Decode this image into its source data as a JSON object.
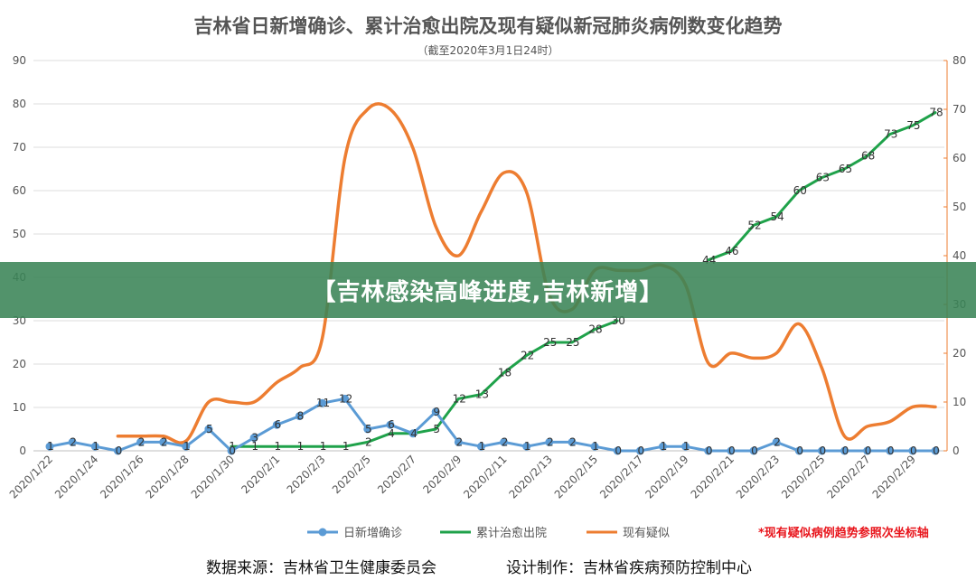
{
  "chart_data": {
    "type": "line",
    "title": "吉林省日新增确诊、累计治愈出院及现有疑似新冠肺炎病例数变化趋势",
    "subtitle": "（截至2020年3月1日24时）",
    "x": [
      "2020/1/22",
      "2020/1/23",
      "2020/1/24",
      "2020/1/25",
      "2020/1/26",
      "2020/1/27",
      "2020/1/28",
      "2020/1/29",
      "2020/1/30",
      "2020/1/31",
      "2020/2/1",
      "2020/2/2",
      "2020/2/3",
      "2020/2/4",
      "2020/2/5",
      "2020/2/6",
      "2020/2/7",
      "2020/2/8",
      "2020/2/9",
      "2020/2/10",
      "2020/2/11",
      "2020/2/12",
      "2020/2/13",
      "2020/2/14",
      "2020/2/15",
      "2020/2/16",
      "2020/2/17",
      "2020/2/18",
      "2020/2/19",
      "2020/2/20",
      "2020/2/21",
      "2020/2/22",
      "2020/2/23",
      "2020/2/24",
      "2020/2/25",
      "2020/2/26",
      "2020/2/27",
      "2020/2/28",
      "2020/2/29",
      "2020/3/1"
    ],
    "x_tick_labels": [
      "2020/1/22",
      "2020/1/24",
      "2020/1/26",
      "2020/1/28",
      "2020/1/30",
      "2020/2/1",
      "2020/2/3",
      "2020/2/5",
      "2020/2/7",
      "2020/2/9",
      "2020/2/11",
      "2020/2/13",
      "2020/2/15",
      "2020/2/17",
      "2020/2/19",
      "2020/2/21",
      "2020/2/23",
      "2020/2/25",
      "2020/2/27",
      "2020/2/29"
    ],
    "y_left": {
      "ylim": [
        0,
        90
      ],
      "ticks": [
        0,
        10,
        20,
        30,
        40,
        50,
        60,
        70,
        80,
        90
      ]
    },
    "y_right": {
      "ylim": [
        0,
        80
      ],
      "ticks": [
        0,
        10,
        20,
        30,
        40,
        50,
        60,
        70,
        80
      ]
    },
    "series": [
      {
        "name": "日新增确诊",
        "color": "#5b9bd5",
        "axis": "left",
        "markers": true,
        "labels": true,
        "values": [
          1,
          2,
          1,
          0,
          2,
          2,
          1,
          5,
          0,
          3,
          6,
          8,
          11,
          12,
          5,
          6,
          4,
          9,
          2,
          1,
          2,
          1,
          2,
          2,
          1,
          0,
          0,
          1,
          1,
          0,
          0,
          0,
          2,
          0,
          0,
          0,
          0,
          0,
          0,
          0
        ]
      },
      {
        "name": "累计治愈出院",
        "color": "#1fa24a",
        "axis": "left",
        "markers": false,
        "labels": true,
        "values": [
          null,
          null,
          null,
          null,
          null,
          null,
          null,
          null,
          1,
          1,
          1,
          1,
          1,
          1,
          2,
          4,
          4,
          5,
          12,
          13,
          18,
          22,
          25,
          25,
          28,
          30,
          null,
          null,
          null,
          44,
          46,
          52,
          54,
          60,
          63,
          65,
          68,
          73,
          75,
          78
        ]
      },
      {
        "name": "现有疑似",
        "color": "#ed7d31",
        "axis": "right",
        "markers": false,
        "labels": false,
        "values": [
          null,
          null,
          null,
          3,
          3,
          3,
          2,
          10,
          10,
          10,
          14,
          17,
          23,
          60,
          70,
          70,
          62,
          46,
          40,
          49,
          57,
          53,
          32,
          29,
          37,
          37,
          37,
          38,
          34,
          18,
          20,
          19,
          20,
          26,
          17,
          3,
          5,
          6,
          9,
          9
        ]
      }
    ],
    "legend_position": "bottom",
    "grid": "horizontal"
  },
  "legend_note": "*现有疑似病例趋势参照次坐标轴",
  "footer": {
    "source": "数据来源：吉林省卫生健康委员会",
    "design": "设计制作：吉林省疾病预防控制中心"
  },
  "banner": {
    "text": "【吉林感染高峰进度,吉林新增】"
  }
}
